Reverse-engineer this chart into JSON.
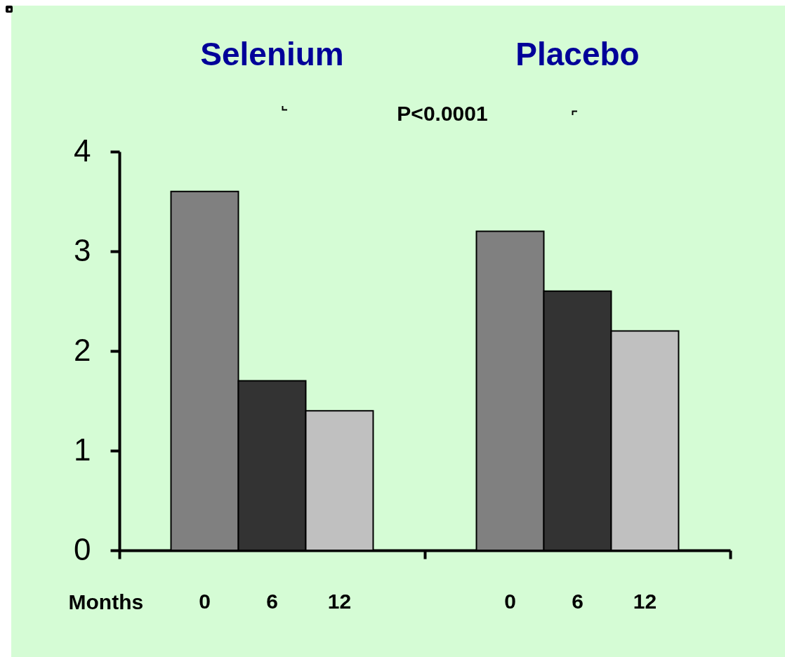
{
  "chart_data": {
    "type": "bar",
    "categories": [
      "Selenium",
      "Placebo"
    ],
    "xlabel": "Months",
    "series": [
      {
        "name": "0",
        "color": "#808080",
        "values": [
          3.6,
          3.2
        ]
      },
      {
        "name": "6",
        "color": "#333333",
        "values": [
          1.7,
          2.6
        ]
      },
      {
        "name": "12",
        "color": "#c0c0c0",
        "values": [
          1.4,
          2.2
        ]
      }
    ],
    "ylim": [
      0,
      4
    ],
    "yticks": [
      0,
      1,
      2,
      3,
      4
    ],
    "grid": false,
    "legend": false,
    "annotations": [
      "P<0.0001"
    ]
  }
}
